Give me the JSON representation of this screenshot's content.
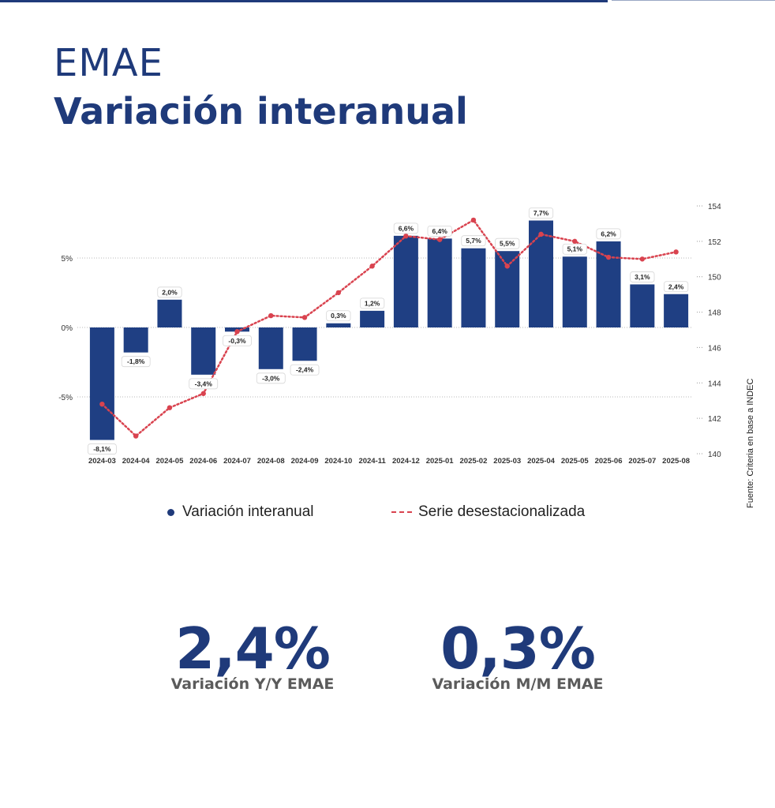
{
  "header": {
    "title": "EMAE",
    "subtitle": "Variación interanual"
  },
  "colors": {
    "brand": "#1f3a7a",
    "bar": "#1f3f83",
    "line": "#d9434f",
    "kpi_label": "#5b5b5b"
  },
  "chart_data": {
    "type": "bar",
    "categories": [
      "2024-03",
      "2024-04",
      "2024-05",
      "2024-06",
      "2024-07",
      "2024-08",
      "2024-09",
      "2024-10",
      "2024-11",
      "2024-12",
      "2025-01",
      "2025-02",
      "2025-03",
      "2025-04",
      "2025-05",
      "2025-06",
      "2025-07",
      "2025-08"
    ],
    "series": [
      {
        "name": "Variación interanual",
        "axis": "left",
        "type": "bar",
        "values": [
          -8.1,
          -1.8,
          2.0,
          -3.4,
          -0.3,
          -3.0,
          -2.4,
          0.3,
          1.2,
          6.6,
          6.4,
          5.7,
          5.5,
          7.7,
          5.1,
          6.2,
          3.1,
          2.4
        ],
        "labels": [
          "-8,1%",
          "-1,8%",
          "2,0%",
          "-3,4%",
          "-0,3%",
          "-3,0%",
          "-2,4%",
          "0,3%",
          "1,2%",
          "6,6%",
          "6,4%",
          "5,7%",
          "5,5%",
          "7,7%",
          "5,1%",
          "6,2%",
          "3,1%",
          "2,4%"
        ]
      },
      {
        "name": "Serie desestacionalizada",
        "axis": "right",
        "type": "line",
        "values": [
          142.8,
          141.0,
          142.6,
          143.4,
          146.9,
          147.8,
          147.7,
          149.1,
          150.6,
          152.3,
          152.1,
          153.2,
          150.6,
          152.4,
          152.0,
          151.1,
          151.0,
          151.4
        ]
      }
    ],
    "left_axis": {
      "ticks": [
        5,
        0,
        -5
      ],
      "tick_labels": [
        "5%",
        "0%",
        "-5%"
      ],
      "ylim": [
        -8.6,
        9.0
      ]
    },
    "right_axis": {
      "ticks": [
        154,
        152,
        150,
        148,
        146,
        144,
        142,
        140
      ],
      "tick_labels": [
        "154",
        "152",
        "150",
        "148",
        "146",
        "144",
        "142",
        "140"
      ],
      "ylim": [
        140,
        154
      ]
    },
    "source_note": "Fuente: Criteria en base a INDEC",
    "legend_position": "bottom"
  },
  "legend": {
    "bars_label": "Variación interanual",
    "line_label": "Serie desestacionalizada"
  },
  "kpis": [
    {
      "value": "2,4%",
      "label": "Variación Y/Y EMAE"
    },
    {
      "value": "0,3%",
      "label": "Variación M/M EMAE"
    }
  ]
}
